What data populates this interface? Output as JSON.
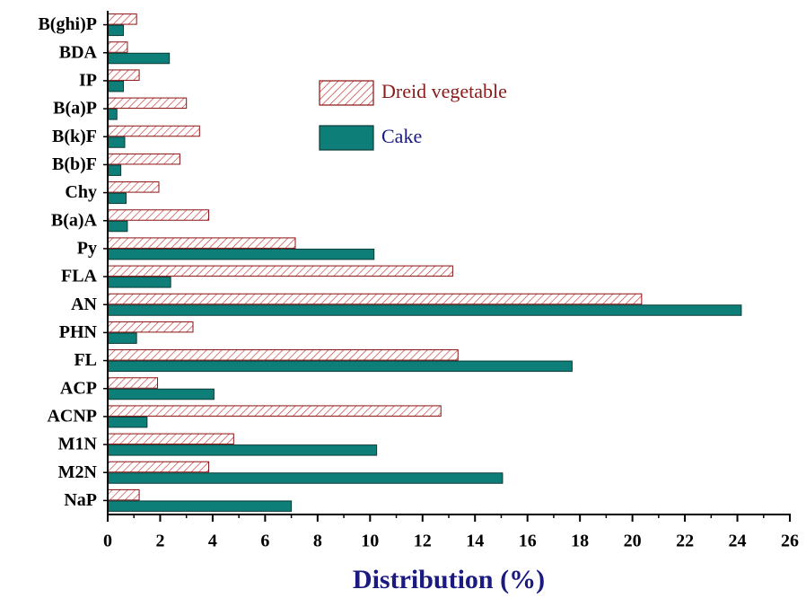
{
  "chart_data": {
    "type": "barh",
    "xlabel": "Distribution (%)",
    "categories": [
      "NaP",
      "M2N",
      "M1N",
      "ACNP",
      "ACP",
      "FL",
      "PHN",
      "AN",
      "FLA",
      "Py",
      "B(a)A",
      "Chy",
      "B(b)F",
      "B(k)F",
      "B(a)P",
      "IP",
      "BDA",
      "B(ghi)P"
    ],
    "series": [
      {
        "name": "Dreid vegetable",
        "color": "#b22222",
        "hatch": true,
        "values": [
          1.2,
          3.85,
          4.8,
          12.7,
          1.9,
          13.35,
          3.25,
          20.35,
          13.15,
          7.15,
          3.85,
          1.95,
          2.75,
          3.5,
          3.0,
          1.2,
          0.75,
          1.1
        ]
      },
      {
        "name": "Cake",
        "color": "#0e7f78",
        "hatch": false,
        "values": [
          7.0,
          15.05,
          10.25,
          1.5,
          4.05,
          17.7,
          1.1,
          24.15,
          2.4,
          10.15,
          0.75,
          0.7,
          0.5,
          0.65,
          0.35,
          0.6,
          2.35,
          0.6
        ]
      }
    ],
    "xlim": [
      0,
      26
    ],
    "xticks": [
      0,
      2,
      4,
      6,
      8,
      10,
      12,
      14,
      16,
      18,
      20,
      22,
      24,
      26
    ]
  }
}
